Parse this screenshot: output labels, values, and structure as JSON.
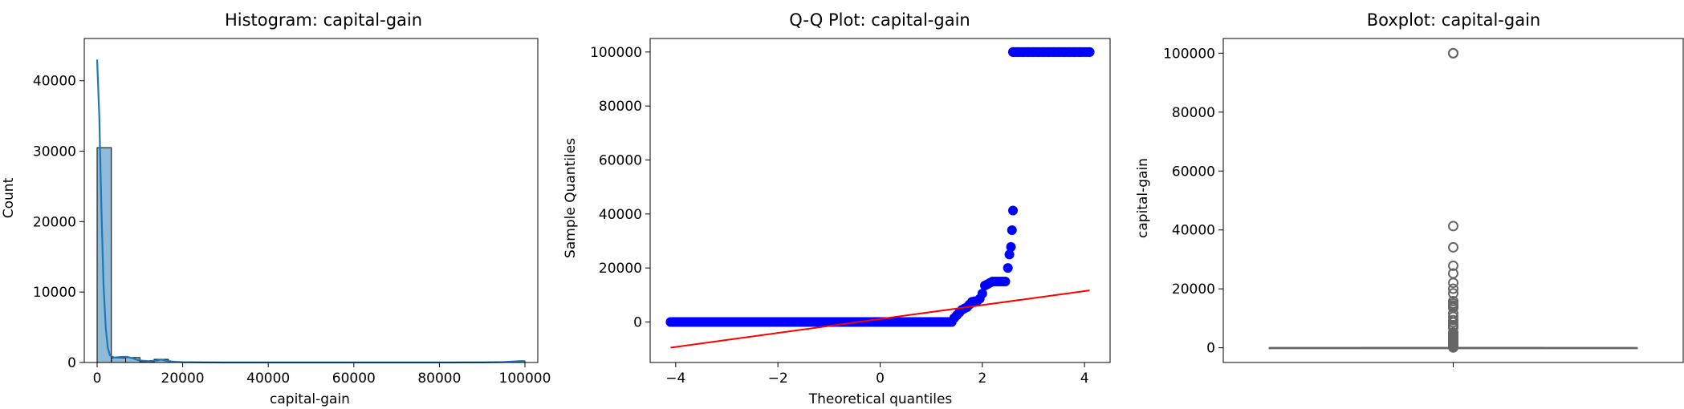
{
  "chart_data": [
    {
      "type": "bar",
      "title": "Histogram: capital-gain",
      "xlabel": "capital-gain",
      "ylabel": "Count",
      "xlim": [
        -3000,
        103000
      ],
      "ylim": [
        0,
        46000
      ],
      "xticks": [
        "0",
        "20000",
        "40000",
        "60000",
        "80000",
        "100000"
      ],
      "yticks": [
        "0",
        "10000",
        "20000",
        "30000",
        "40000"
      ],
      "bin_edges": [
        0,
        3333,
        6667,
        10000,
        13333,
        16667,
        20000,
        23333,
        26667,
        30000,
        33333,
        36667,
        40000,
        43333,
        46667,
        50000,
        53333,
        56667,
        60000,
        63333,
        66667,
        70000,
        73333,
        76667,
        80000,
        83333,
        86667,
        90000,
        93333,
        96667,
        100000
      ],
      "counts": [
        30500,
        650,
        700,
        120,
        450,
        40,
        25,
        15,
        30,
        0,
        10,
        0,
        5,
        0,
        0,
        0,
        0,
        0,
        0,
        0,
        0,
        0,
        0,
        0,
        0,
        0,
        0,
        0,
        0,
        160
      ],
      "kde": {
        "x": [
          0,
          500,
          1000,
          1500,
          2000,
          2500,
          3000,
          4000,
          5000,
          6000,
          7000,
          8000,
          9000,
          10000,
          12000,
          14000,
          15000,
          16000,
          18000,
          20000,
          25000,
          30000,
          40000,
          50000,
          60000,
          70000,
          80000,
          90000,
          95000,
          97000,
          99000,
          100000
        ],
        "y": [
          43000,
          35000,
          22000,
          11000,
          5000,
          2100,
          1000,
          700,
          750,
          800,
          800,
          650,
          450,
          280,
          180,
          300,
          420,
          260,
          100,
          40,
          15,
          5,
          0,
          0,
          0,
          0,
          0,
          10,
          60,
          120,
          200,
          210
        ]
      },
      "color": "#1f77b4"
    },
    {
      "type": "scatter",
      "title": "Q-Q Plot: capital-gain",
      "xlabel": "Theoretical quantiles",
      "ylabel": "Sample Quantiles",
      "xlim": [
        -4.5,
        4.5
      ],
      "ylim": [
        -15000,
        105000
      ],
      "xticks": [
        "−4",
        "−2",
        "0",
        "2",
        "4"
      ],
      "yticks": [
        "0",
        "20000",
        "40000",
        "60000",
        "80000",
        "100000"
      ],
      "points": {
        "x": [
          -4.1,
          -3.9,
          -3.7,
          -3.5,
          -3.3,
          -3.1,
          -2.9,
          -2.7,
          -2.5,
          -2.3,
          -2.1,
          -1.9,
          -1.7,
          -1.5,
          -1.3,
          -1.1,
          -0.9,
          -0.7,
          -0.5,
          -0.3,
          -0.1,
          0.1,
          0.3,
          0.5,
          0.7,
          0.9,
          1.1,
          1.3,
          1.4,
          1.45,
          1.5,
          1.55,
          1.6,
          1.65,
          1.7,
          1.75,
          1.8,
          1.85,
          1.9,
          1.95,
          2.0,
          2.05,
          2.1,
          2.15,
          2.2,
          2.25,
          2.3,
          2.35,
          2.4,
          2.45,
          2.5,
          2.53,
          2.56,
          2.58,
          2.6,
          2.6,
          2.62,
          2.7,
          2.8,
          2.9,
          3.0,
          3.1,
          3.2,
          3.3,
          3.4,
          3.5,
          3.6,
          3.7,
          3.8,
          3.9,
          4.1
        ],
        "y": [
          0,
          0,
          0,
          0,
          0,
          0,
          0,
          0,
          0,
          0,
          0,
          0,
          0,
          0,
          0,
          0,
          0,
          0,
          0,
          0,
          0,
          0,
          0,
          0,
          0,
          0,
          0,
          0,
          0,
          1500,
          2500,
          3500,
          4500,
          5000,
          5500,
          6500,
          7500,
          7700,
          7800,
          8600,
          10500,
          13500,
          14000,
          14500,
          15000,
          15000,
          15000,
          15000,
          15000,
          15000,
          20000,
          25000,
          27800,
          34000,
          41300,
          100000,
          100000,
          100000,
          100000,
          100000,
          100000,
          100000,
          100000,
          100000,
          100000,
          100000,
          100000,
          100000,
          100000,
          100000,
          100000
        ]
      },
      "line": {
        "x": [
          -4.1,
          4.1
        ],
        "y": [
          -9500,
          11700
        ]
      },
      "point_color": "#0000ff",
      "line_color": "#ff0000"
    },
    {
      "type": "box",
      "title": "Boxplot: capital-gain",
      "ylabel": "capital-gain",
      "ylim": [
        -5000,
        105000
      ],
      "yticks": [
        "0",
        "20000",
        "40000",
        "60000",
        "80000",
        "100000"
      ],
      "box": {
        "q1": 0,
        "median": 0,
        "q3": 0,
        "whisker_low": 0,
        "whisker_high": 0
      },
      "outliers": [
        41310,
        34095,
        27828,
        25236,
        22040,
        20051,
        18481,
        15831,
        15024,
        14344,
        14084,
        13550,
        11678,
        10520,
        9386,
        8614,
        7688,
        7298,
        6849,
        5178,
        4787,
        4386,
        3908,
        3464,
        3103,
        2829,
        2580,
        2174,
        1848,
        1471,
        1055,
        594,
        114,
        99999,
        100000
      ],
      "color": "#666666"
    }
  ]
}
